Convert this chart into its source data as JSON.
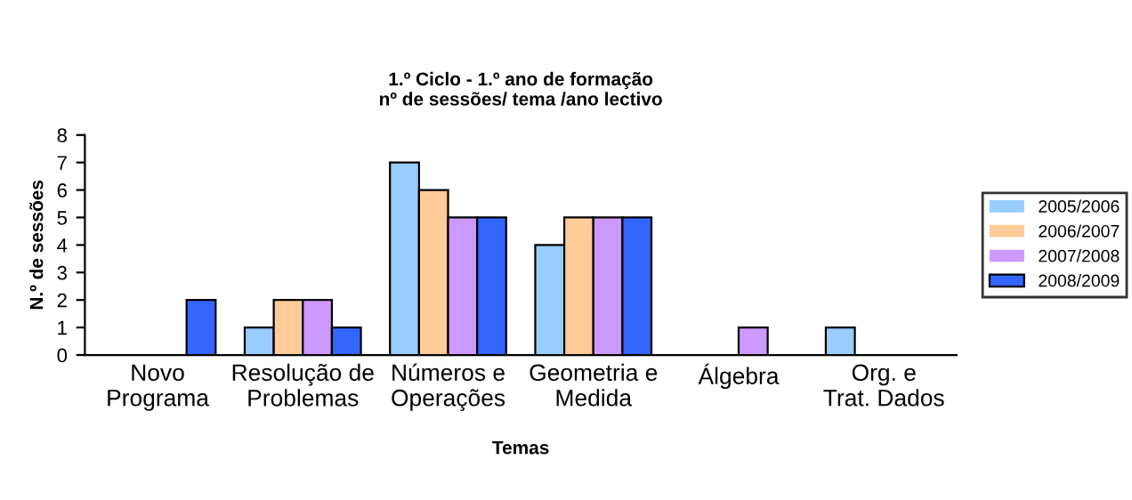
{
  "chart_data": {
    "type": "bar",
    "title": "1.º Ciclo - 1.º ano de formação\nnº de sessões/ tema /ano lectivo",
    "xlabel": "Temas",
    "ylabel": "N.º de sessões",
    "categories": [
      "Novo\nPrograma",
      "Resolução de\nProblemas",
      "Números e\nOperações",
      "Geometria e\nMedida",
      "Álgebra",
      "Org. e\nTrat. Dados"
    ],
    "series": [
      {
        "name": "2005/2006",
        "color": "#99ccff",
        "values": [
          0,
          1,
          7,
          4,
          0,
          1
        ]
      },
      {
        "name": "2006/2007",
        "color": "#ffcc99",
        "values": [
          0,
          2,
          6,
          5,
          0,
          0
        ]
      },
      {
        "name": "2007/2008",
        "color": "#cc99ff",
        "values": [
          0,
          2,
          5,
          5,
          1,
          0
        ]
      },
      {
        "name": "2008/2009",
        "color": "#3366ff",
        "values": [
          2,
          1,
          5,
          5,
          0,
          0
        ]
      }
    ],
    "ylim": [
      0,
      8
    ],
    "yticks": [
      0,
      1,
      2,
      3,
      4,
      5,
      6,
      7,
      8
    ],
    "grid": false,
    "legend": "right"
  }
}
